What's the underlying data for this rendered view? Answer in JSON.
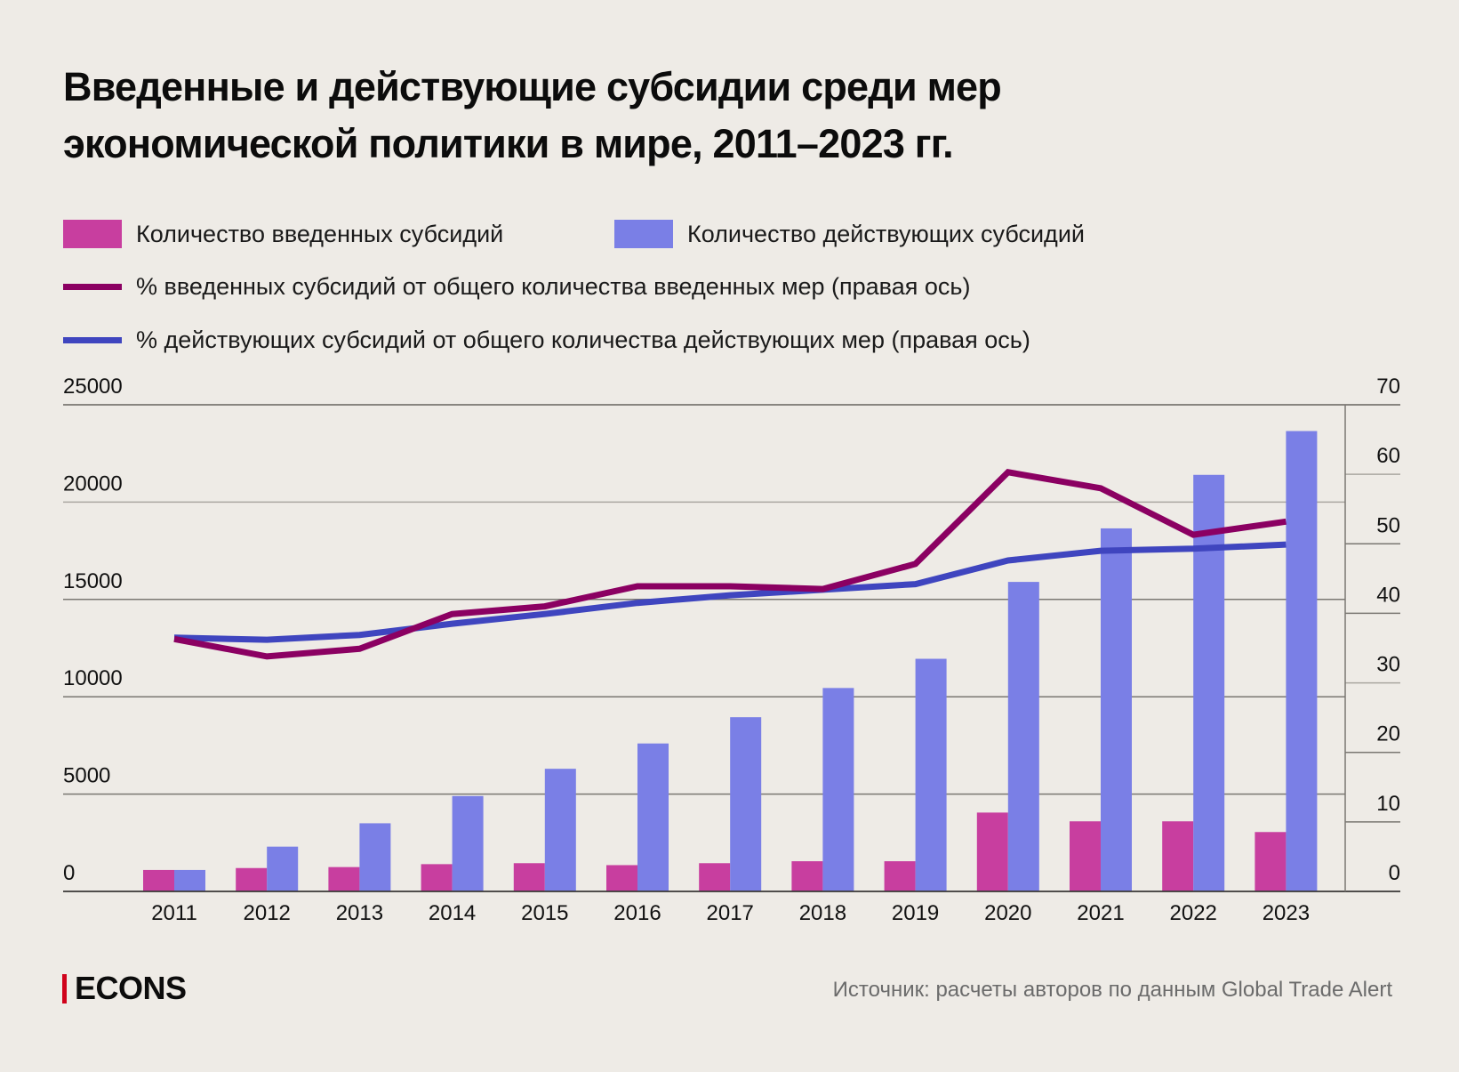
{
  "chart_data": {
    "type": "bar",
    "title": "Введенные и действующие субсидии среди мер экономической политики в мире, 2011–2023 гг.",
    "title_lines": [
      "Введенные и действующие субсидии среди мер",
      "экономической политики в мире, 2011–2023 гг."
    ],
    "categories": [
      "2011",
      "2012",
      "2013",
      "2014",
      "2015",
      "2016",
      "2017",
      "2018",
      "2019",
      "2020",
      "2021",
      "2022",
      "2023"
    ],
    "series": [
      {
        "name": "Количество введенных субсидий",
        "type": "bar",
        "axis": "left",
        "color": "#c83e9f",
        "values": [
          1100,
          1200,
          1250,
          1400,
          1450,
          1350,
          1450,
          1550,
          1550,
          4050,
          3600,
          3600,
          3050
        ]
      },
      {
        "name": "Количество действующих субсидий",
        "type": "bar",
        "axis": "left",
        "color": "#7a7fe6",
        "values": [
          1100,
          2300,
          3500,
          4900,
          6300,
          7600,
          8950,
          10450,
          11950,
          15900,
          18650,
          21400,
          23650
        ]
      },
      {
        "name": "% введенных субсидий от общего количества введенных мер (правая ось)",
        "type": "line",
        "axis": "right",
        "color": "#8b0062",
        "values": [
          36.3,
          33.8,
          34.9,
          39.9,
          41.0,
          43.9,
          43.9,
          43.5,
          47.1,
          60.3,
          58.0,
          51.3,
          53.2
        ]
      },
      {
        "name": "% действующих субсидий от общего количества действующих мер (правая ось)",
        "type": "line",
        "axis": "right",
        "color": "#3f45bf",
        "values": [
          36.5,
          36.2,
          36.9,
          38.5,
          39.9,
          41.5,
          42.6,
          43.4,
          44.2,
          47.6,
          49.0,
          49.3,
          49.9
        ]
      }
    ],
    "y_left": {
      "ylim": [
        0,
        25000
      ],
      "ticks": [
        "0",
        "5000",
        "10000",
        "15000",
        "20000",
        "25000"
      ],
      "tick_values": [
        0,
        5000,
        10000,
        15000,
        20000,
        25000
      ]
    },
    "y_right": {
      "ylim": [
        0,
        70
      ],
      "ticks": [
        "0",
        "10",
        "20",
        "30",
        "40",
        "50",
        "60",
        "70"
      ],
      "tick_values": [
        0,
        10,
        20,
        30,
        40,
        50,
        60,
        70
      ]
    },
    "xlabel": "",
    "ylabel": "",
    "grid": true,
    "legend_position": "top"
  },
  "footer": {
    "logo": "ECONS",
    "source": "Источник: расчеты авторов по данным Global Trade Alert"
  }
}
